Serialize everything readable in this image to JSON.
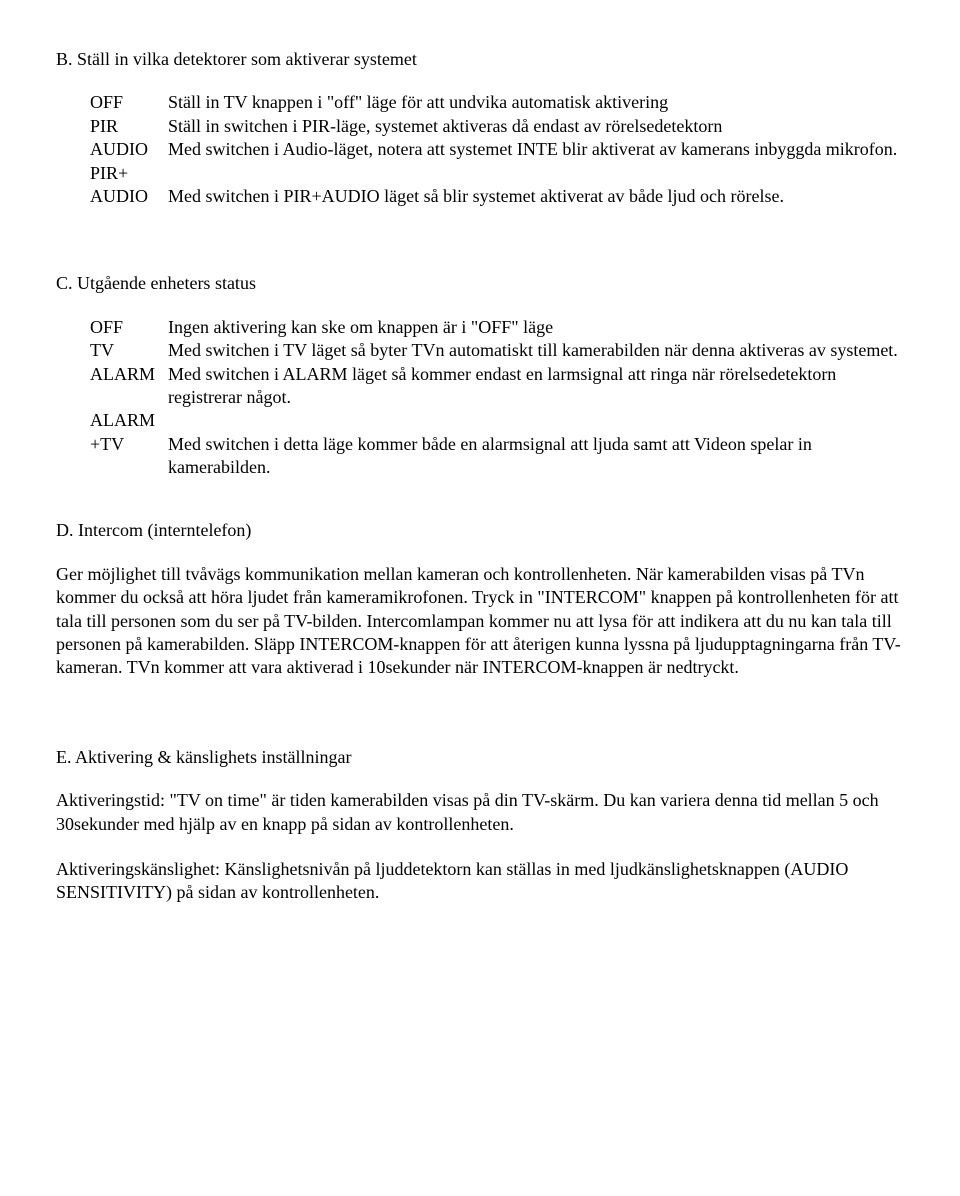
{
  "sectionB": {
    "heading": "B. Ställ in vilka detektorer som aktiverar systemet",
    "items": [
      {
        "term": "OFF",
        "desc": "Ställ in TV knappen i \"off\" läge för att undvika automatisk aktivering"
      },
      {
        "term": "PIR",
        "desc": "Ställ in switchen i PIR-läge, systemet aktiveras då endast av rörelsedetektorn"
      },
      {
        "term": "AUDIO",
        "desc": "Med switchen i Audio-läget, notera att systemet INTE blir aktiverat av kamerans inbyggda mikrofon."
      },
      {
        "term": "PIR+",
        "desc": ""
      },
      {
        "term": "AUDIO",
        "desc": "Med switchen i PIR+AUDIO läget så blir systemet aktiverat av både ljud och rörelse."
      }
    ]
  },
  "sectionC": {
    "heading": "C. Utgående enheters status",
    "items": [
      {
        "term": "OFF",
        "desc": "Ingen aktivering kan ske om knappen är i \"OFF\" läge"
      },
      {
        "term": "TV",
        "desc": "Med switchen i TV läget så byter TVn automatiskt till kamerabilden när denna aktiveras av systemet."
      },
      {
        "term": "ALARM",
        "desc": "Med switchen i ALARM läget så kommer endast en larmsignal att ringa när rörelsedetektorn registrerar något."
      },
      {
        "term": "ALARM",
        "desc": ""
      },
      {
        "term": "+TV",
        "desc": "Med switchen i detta läge kommer både en alarmsignal att ljuda samt att Videon spelar in kamerabilden."
      }
    ]
  },
  "sectionD": {
    "heading": "D. Intercom (interntelefon)",
    "paragraph": "Ger möjlighet till tvåvägs kommunikation mellan kameran och kontrollenheten. När kamerabilden visas på TVn kommer du också att höra ljudet från kameramikrofonen. Tryck in \"INTERCOM\" knappen på kontrollenheten för att tala till personen som du ser på TV-bilden. Intercomlampan kommer nu att lysa för att indikera att du nu kan tala till personen på kamerabilden. Släpp INTERCOM-knappen för att återigen kunna lyssna på ljudupptagningarna från TV-kameran. TVn kommer att vara aktiverad i 10sekunder när INTERCOM-knappen är nedtryckt."
  },
  "sectionE": {
    "heading": "E. Aktivering & känslighets inställningar",
    "paragraph1": "Aktiveringstid: \"TV on time\" är tiden kamerabilden visas på din TV-skärm. Du kan variera denna tid mellan 5 och 30sekunder med hjälp av en knapp på sidan av kontrollenheten.",
    "paragraph2": "Aktiveringskänslighet: Känslighetsnivån på ljuddetektorn kan ställas in med ljudkänslighetsknappen (AUDIO SENSITIVITY) på sidan av kontrollenheten."
  }
}
